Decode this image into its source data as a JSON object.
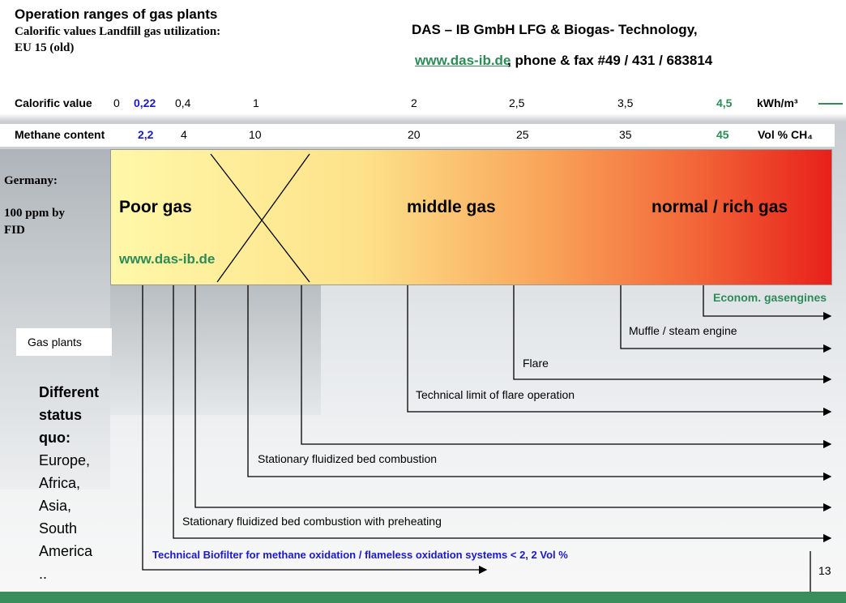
{
  "header": {
    "title": "Operation ranges of gas plants",
    "subtitle_lines": [
      "Calorific values Landfill gas utilization:",
      "EU 15 (old)"
    ],
    "company": "DAS – IB GmbH LFG & Biogas- Technology,",
    "website": "www.das-ib.de",
    "contact": ", phone & fax #49 / 431 / 683814"
  },
  "calorific_scale": {
    "label": "Calorific value",
    "ticks": [
      "0",
      "0,22",
      "0,4",
      "1",
      "2",
      "2,5",
      "3,5",
      "4,5"
    ],
    "unit": "kWh/m³"
  },
  "methane_scale": {
    "label": "Methane content",
    "ticks": [
      "2,2",
      "4",
      "10",
      "20",
      "25",
      "35",
      "45"
    ],
    "unit": "Vol % CH₄"
  },
  "germany_note": [
    "Germany:",
    "100 ppm by",
    "FID"
  ],
  "gas_ranges": [
    "Poor gas",
    "middle gas",
    "normal / rich gas"
  ],
  "bar_website": "www.das-ib.de",
  "plants": [
    "Econom. gasengines",
    "Muffle / steam engine",
    "Flare",
    "Technical limit of flare operation",
    "Stationary fluidized bed combustion",
    "Stationary fluidized bed combustion with preheating",
    "Technical Biofilter for methane oxidation / flameless oxidation systems < 2, 2 Vol %"
  ],
  "gas_plants_label": "Gas plants",
  "status": {
    "heading": [
      "Different",
      "status",
      "quo:"
    ],
    "regions": [
      "Europe,",
      "Africa,",
      "Asia,",
      "South",
      "America",
      ".."
    ]
  },
  "page_number": "13"
}
